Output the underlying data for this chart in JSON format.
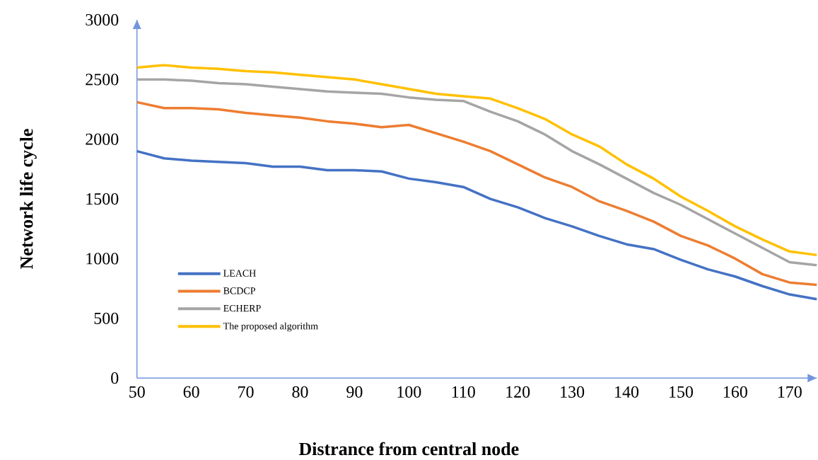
{
  "chart_data": {
    "type": "line",
    "xlabel": "Distrance from central node",
    "ylabel": "Network life cycle",
    "x": [
      50,
      55,
      60,
      65,
      70,
      75,
      80,
      85,
      90,
      95,
      100,
      105,
      110,
      115,
      120,
      125,
      130,
      135,
      140,
      145,
      150,
      155,
      160,
      165,
      170,
      175
    ],
    "series": [
      {
        "name": "LEACH",
        "color": "#4472c4",
        "values": [
          1900,
          1840,
          1820,
          1810,
          1800,
          1770,
          1770,
          1740,
          1740,
          1730,
          1670,
          1640,
          1600,
          1500,
          1430,
          1340,
          1270,
          1190,
          1120,
          1080,
          990,
          910,
          850,
          770,
          700,
          660
        ]
      },
      {
        "name": "BCDCP",
        "color": "#ed7d31",
        "values": [
          2310,
          2260,
          2260,
          2250,
          2220,
          2200,
          2180,
          2150,
          2130,
          2100,
          2120,
          2050,
          1980,
          1900,
          1790,
          1680,
          1600,
          1480,
          1400,
          1310,
          1190,
          1110,
          1000,
          870,
          800,
          780
        ]
      },
      {
        "name": "ECHERP",
        "color": "#a5a5a5",
        "values": [
          2500,
          2500,
          2490,
          2470,
          2460,
          2440,
          2420,
          2400,
          2390,
          2380,
          2350,
          2330,
          2320,
          2230,
          2150,
          2040,
          1900,
          1790,
          1670,
          1550,
          1450,
          1330,
          1210,
          1090,
          970,
          945
        ]
      },
      {
        "name": "The proposed algorithm",
        "color": "#ffc000",
        "values": [
          2600,
          2620,
          2600,
          2590,
          2570,
          2560,
          2540,
          2520,
          2500,
          2460,
          2420,
          2380,
          2360,
          2340,
          2260,
          2170,
          2040,
          1940,
          1790,
          1670,
          1520,
          1400,
          1270,
          1160,
          1060,
          1030
        ]
      }
    ],
    "xlim": [
      50,
      175
    ],
    "xticks": [
      50,
      60,
      70,
      80,
      90,
      100,
      110,
      120,
      130,
      140,
      150,
      160,
      170
    ],
    "ylim": [
      0,
      3000
    ],
    "yticks": [
      0,
      500,
      1000,
      1500,
      2000,
      2500,
      3000
    ],
    "legend": "bottom left",
    "grid": false,
    "marker": "none",
    "line_style": "solid"
  }
}
